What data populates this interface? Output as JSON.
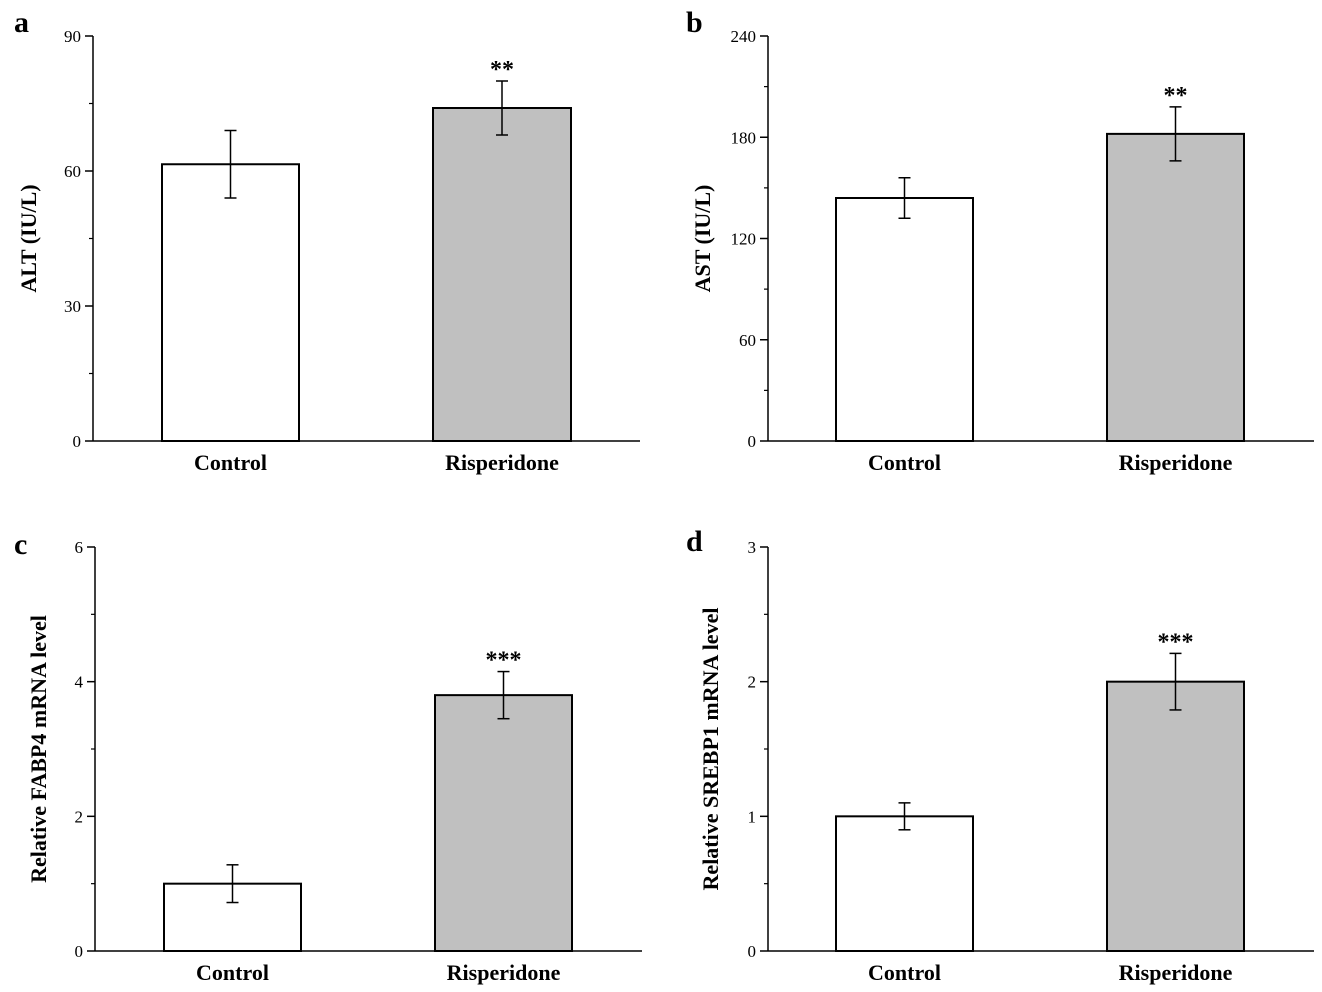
{
  "colors": {
    "control": "#ffffff",
    "treatment": "#c0c0c0",
    "stroke": "#000000"
  },
  "chart_data": [
    {
      "panel": "a",
      "type": "bar",
      "title": "",
      "xlabel": "",
      "ylabel": "ALT (IU/L)",
      "ylim": [
        0,
        90
      ],
      "yticks": [
        0,
        30,
        60,
        90
      ],
      "categories": [
        "Control",
        "Risperidone"
      ],
      "values": [
        61.5,
        74
      ],
      "errors": [
        7.5,
        6
      ],
      "annotations": [
        "",
        "**"
      ]
    },
    {
      "panel": "b",
      "type": "bar",
      "title": "",
      "xlabel": "",
      "ylabel": "AST (IU/L)",
      "ylim": [
        0,
        240
      ],
      "yticks": [
        0,
        60,
        120,
        180,
        240
      ],
      "categories": [
        "Control",
        "Risperidone"
      ],
      "values": [
        144,
        182
      ],
      "errors": [
        12,
        16
      ],
      "annotations": [
        "",
        "**"
      ]
    },
    {
      "panel": "c",
      "type": "bar",
      "title": "",
      "xlabel": "",
      "ylabel": "Relative FABP4 mRNA level",
      "ylim": [
        0,
        6
      ],
      "yticks": [
        0,
        2,
        4,
        6
      ],
      "categories": [
        "Control",
        "Risperidone"
      ],
      "values": [
        1.0,
        3.8
      ],
      "errors": [
        0.28,
        0.35
      ],
      "annotations": [
        "",
        "***"
      ]
    },
    {
      "panel": "d",
      "type": "bar",
      "title": "",
      "xlabel": "",
      "ylabel": "Relative SREBP1 mRNA level",
      "ylim": [
        0,
        3
      ],
      "yticks": [
        0,
        1,
        2,
        3
      ],
      "categories": [
        "Control",
        "Risperidone"
      ],
      "values": [
        1.0,
        2.0
      ],
      "errors": [
        0.1,
        0.21
      ],
      "annotations": [
        "",
        "***"
      ]
    }
  ]
}
